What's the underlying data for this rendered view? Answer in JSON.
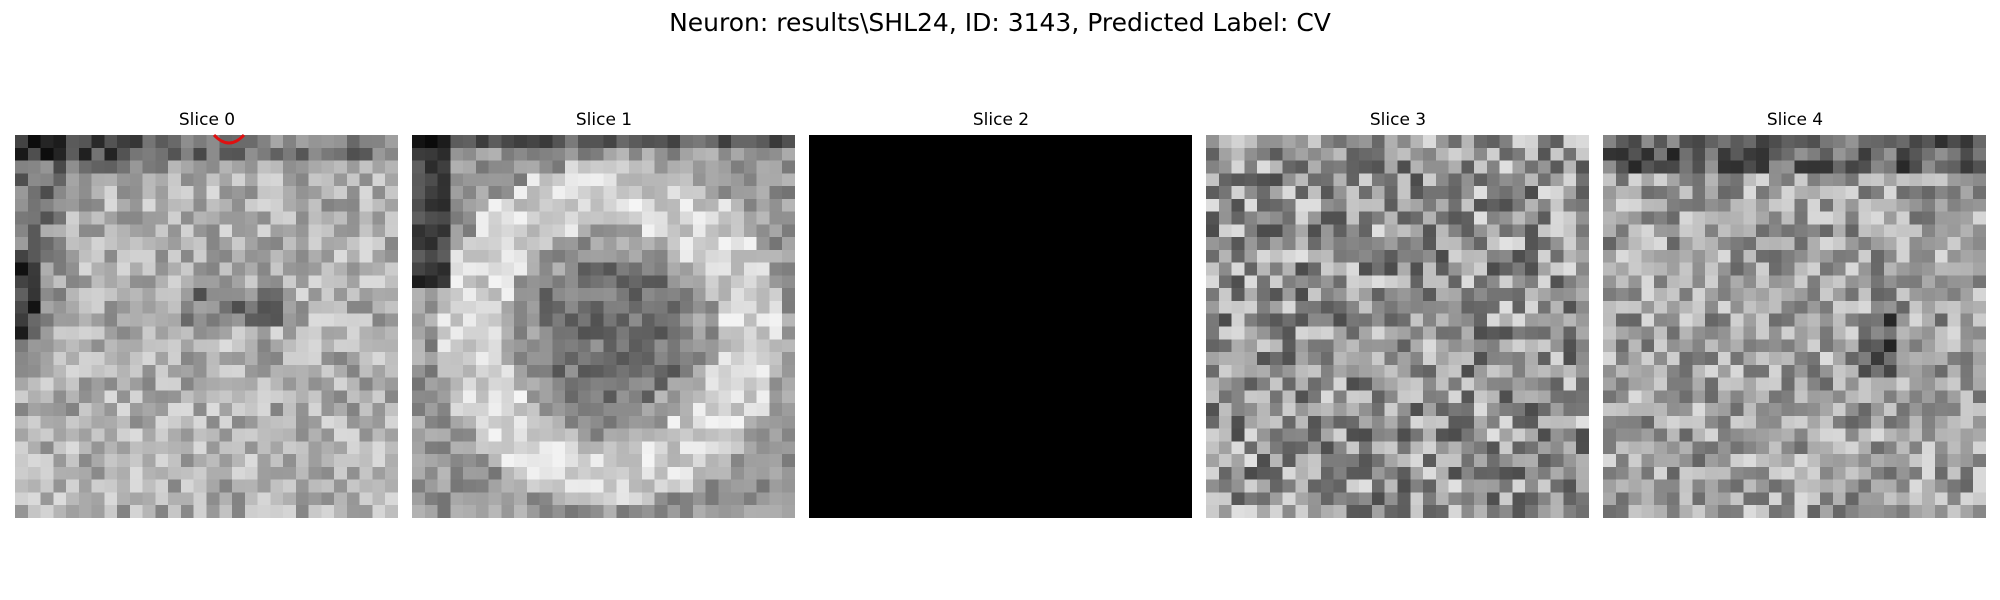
{
  "figure": {
    "title": "Neuron: results\\SHL24, ID: 3143, Predicted Label: CV",
    "colormap": "gray",
    "marker_color": "#e01010"
  },
  "slices": [
    {
      "title": "Slice 0",
      "pattern": "edge-dark-topleft",
      "seed": 11
    },
    {
      "title": "Slice 1",
      "pattern": "bright-ring",
      "seed": 23
    },
    {
      "title": "Slice 2",
      "pattern": "black",
      "seed": 0
    },
    {
      "title": "Slice 3",
      "pattern": "uniform-noise",
      "seed": 37
    },
    {
      "title": "Slice 4",
      "pattern": "dark-top-noise",
      "seed": 53
    }
  ]
}
